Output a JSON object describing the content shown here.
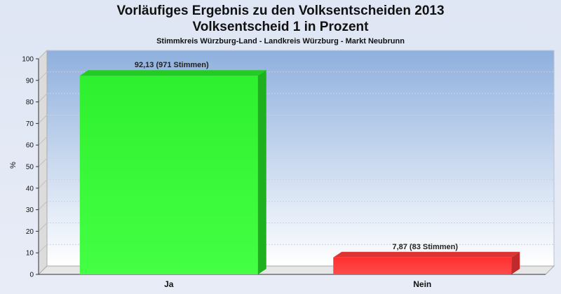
{
  "header": {
    "title_line1": "Vorläufiges Ergebnis zu den Volksentscheiden 2013",
    "title_line2": "Volksentscheid 1 in Prozent",
    "subtitle": "Stimmkreis Würzburg-Land - Landkreis Würzburg - Markt Neubrunn"
  },
  "chart_data": {
    "type": "bar",
    "title": "Vorläufiges Ergebnis zu den Volksentscheiden 2013 / Volksentscheid 1 in Prozent",
    "subtitle": "Stimmkreis Würzburg-Land - Landkreis Würzburg - Markt Neubrunn",
    "categories": [
      "Ja",
      "Nein"
    ],
    "values": [
      92.13,
      7.87
    ],
    "data_labels": [
      "92,13 (971 Stimmen)",
      "7,87 (83 Stimmen)"
    ],
    "bar_colors": [
      "#33ee33",
      "#ee3333"
    ],
    "xlabel": "",
    "ylabel": "%",
    "ylim": [
      0,
      100
    ],
    "yticks": [
      0,
      10,
      20,
      30,
      40,
      50,
      60,
      70,
      80,
      90,
      100
    ],
    "grid": true,
    "style": "3d"
  }
}
